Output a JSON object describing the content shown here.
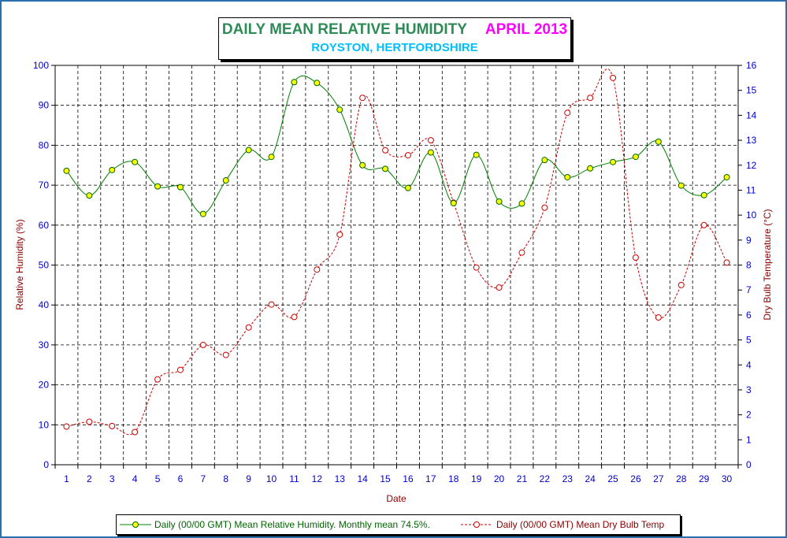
{
  "chart_data": {
    "type": "line",
    "title": "DAILY MEAN RELATIVE HUMIDITY",
    "title_period": "APRIL 2013",
    "subtitle": "ROYSTON, HERTFORDSHIRE",
    "xlabel": "Date",
    "ylabel": "Relative Humidity (%)",
    "y2label": "Dry Bulb Temperature (°C)",
    "x": [
      1,
      2,
      3,
      4,
      5,
      6,
      7,
      8,
      9,
      10,
      11,
      12,
      13,
      14,
      15,
      16,
      17,
      18,
      19,
      20,
      21,
      22,
      23,
      24,
      25,
      26,
      27,
      28,
      29,
      30
    ],
    "ylim": [
      0,
      100
    ],
    "y2lim": [
      0,
      16
    ],
    "yticks": [
      0,
      10,
      20,
      30,
      40,
      50,
      60,
      70,
      80,
      90,
      100
    ],
    "y2ticks": [
      0,
      1,
      2,
      3,
      4,
      5,
      6,
      7,
      8,
      9,
      10,
      11,
      12,
      13,
      14,
      15,
      16
    ],
    "grid": true,
    "legend_position": "bottom",
    "series": [
      {
        "name": "Daily (00/00 GMT) Mean Relative Humidity. Monthly mean 74.5%.",
        "axis": "left",
        "color": "#008000",
        "marker_fill": "#ffff00",
        "values": [
          73.6,
          67.4,
          73.8,
          75.8,
          69.7,
          69.5,
          62.8,
          71.2,
          78.8,
          77.1,
          95.8,
          95.6,
          88.9,
          75.0,
          74.1,
          69.3,
          78.2,
          65.5,
          77.6,
          65.9,
          65.4,
          76.3,
          72.0,
          74.2,
          75.8,
          77.1,
          80.9,
          69.9,
          67.5,
          72.0
        ]
      },
      {
        "name": "Daily (00/00 GMT) Mean Dry Bulb Temp",
        "axis": "right",
        "color": "#cc0000",
        "marker_fill": "none",
        "values": [
          1.53,
          1.72,
          1.55,
          1.31,
          3.42,
          3.8,
          4.8,
          4.4,
          5.5,
          6.42,
          5.92,
          7.82,
          9.22,
          14.7,
          12.6,
          12.4,
          13.0,
          10.5,
          7.9,
          7.1,
          8.5,
          10.3,
          14.1,
          14.7,
          15.5,
          8.3,
          5.9,
          7.2,
          9.6,
          8.1
        ]
      }
    ]
  }
}
